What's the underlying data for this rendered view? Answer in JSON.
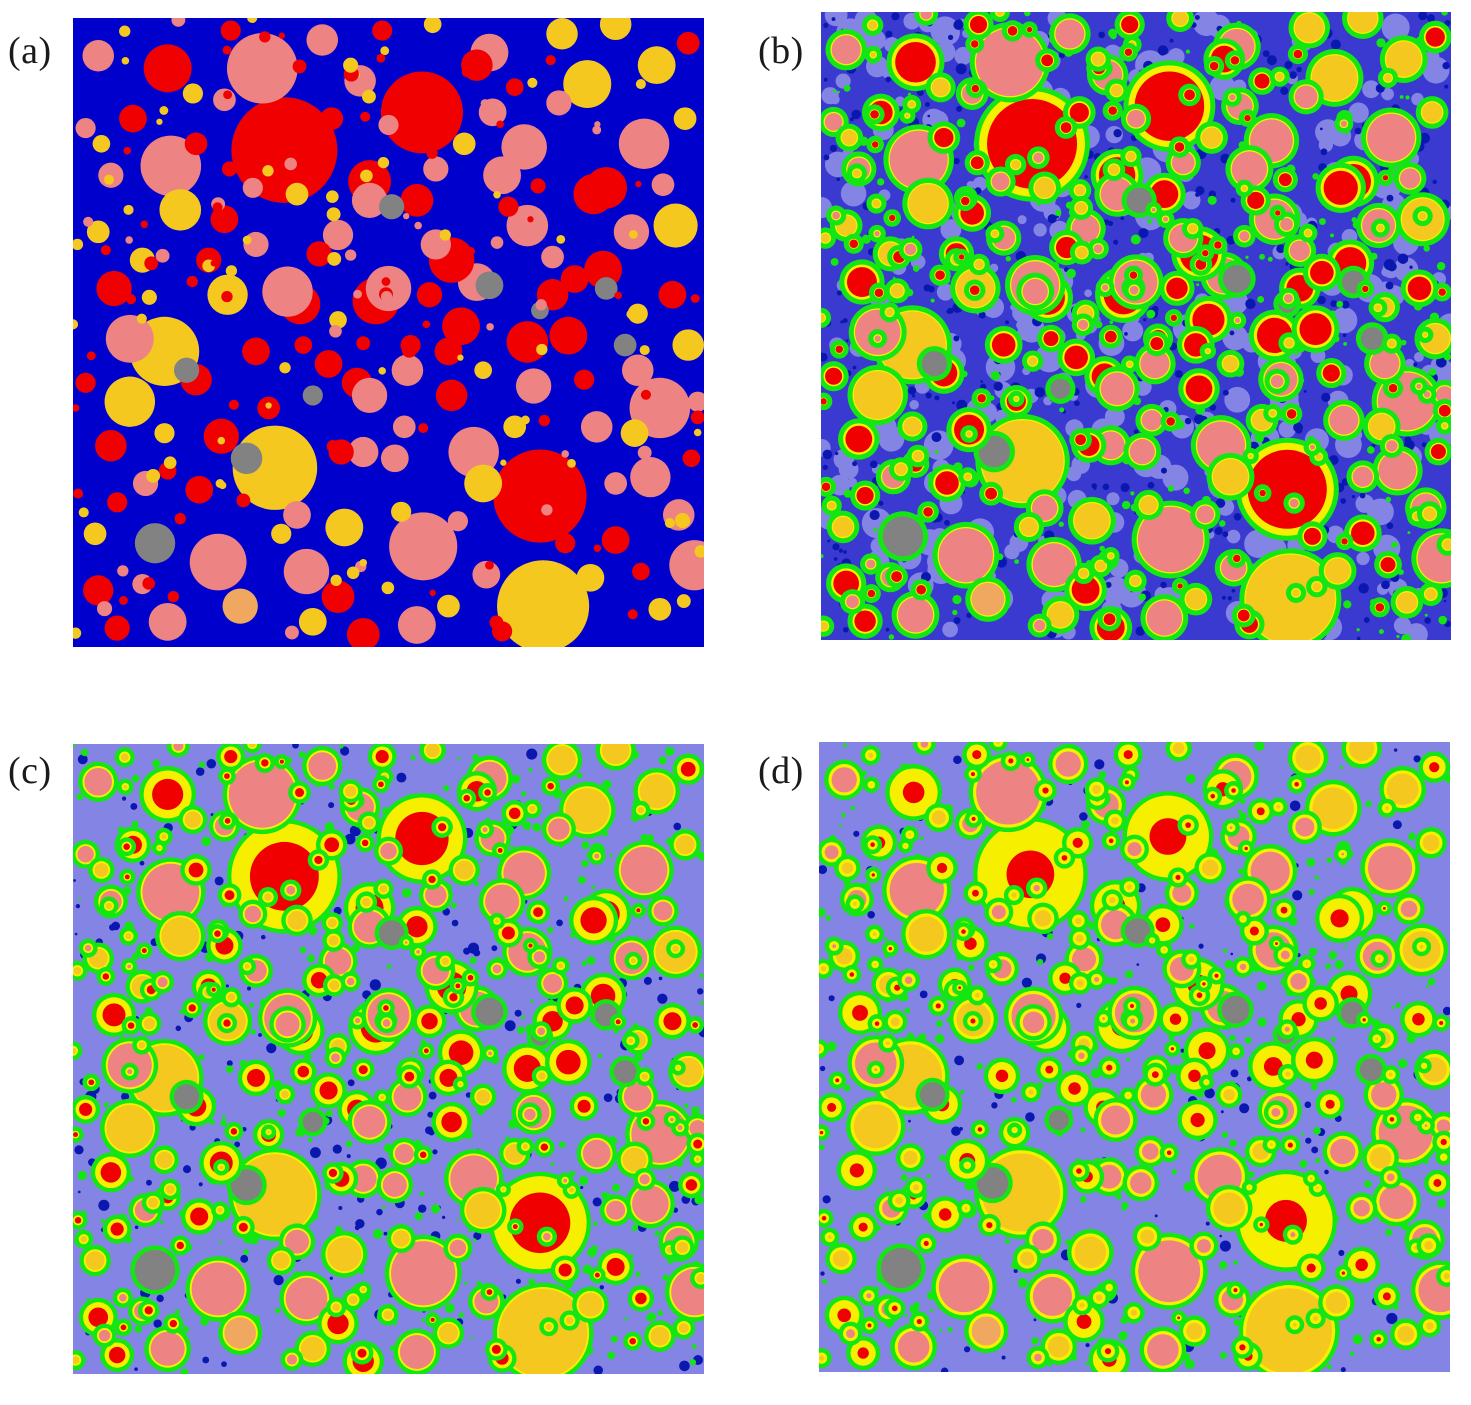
{
  "colors": {
    "matrix_a": "#0000cc",
    "matrix_mottle_dark": "#0a18b0",
    "matrix_mottle_light": "#8484e4",
    "hydrate_green": "#14e614",
    "rim_yellow": "#f6f000",
    "red": "#f00000",
    "pink": "#ee8383",
    "gold": "#f5c820",
    "tan": "#f0a860",
    "grey": "#828282"
  },
  "panels": [
    {
      "id": "a",
      "label": "(a)",
      "stage": 0
    },
    {
      "id": "b",
      "label": "(b)",
      "stage": 1
    },
    {
      "id": "c",
      "label": "(c)",
      "stage": 2
    },
    {
      "id": "d",
      "label": "(d)",
      "stage": 3
    }
  ]
}
